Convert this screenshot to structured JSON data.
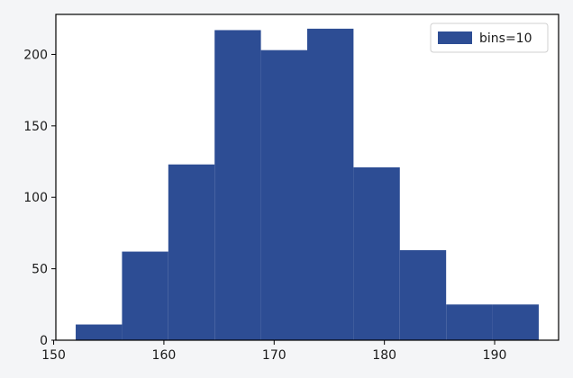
{
  "chart_data": {
    "type": "bar",
    "subtype": "histogram",
    "title": "",
    "xlabel": "",
    "ylabel": "",
    "bin_edges": [
      152,
      156.2,
      160.4,
      164.6,
      168.8,
      173,
      177.2,
      181.4,
      185.6,
      189.8,
      194
    ],
    "series": [
      {
        "name": "bins=10",
        "values": [
          11,
          62,
          123,
          217,
          203,
          218,
          121,
          63,
          25,
          25
        ]
      }
    ],
    "xlim": [
      150.2,
      195.8
    ],
    "ylim": [
      0,
      228
    ],
    "xticks": [
      150,
      160,
      170,
      180,
      190
    ],
    "yticks": [
      0,
      50,
      100,
      150,
      200
    ],
    "grid": false,
    "legend": {
      "position": "top-right",
      "entries": [
        "bins=10"
      ]
    },
    "colors": {
      "bar": "#2d4d94",
      "axes": "#000000",
      "background": "#ffffff"
    }
  }
}
